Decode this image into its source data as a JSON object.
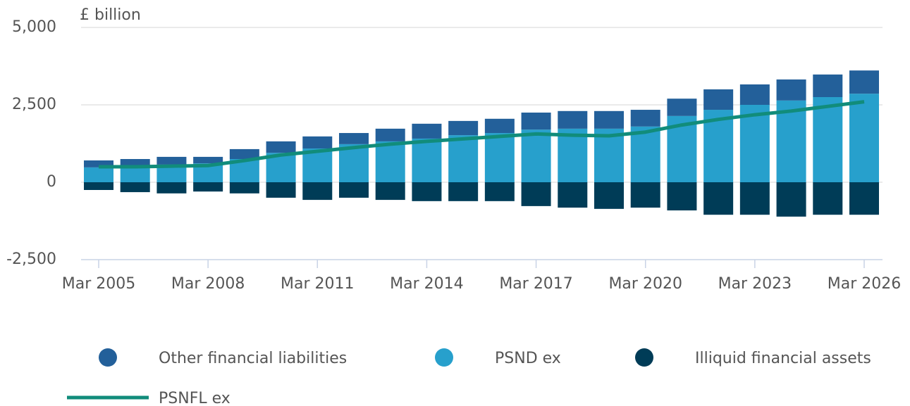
{
  "chart_data": {
    "type": "bar",
    "y_label": "£ billion",
    "categories": [
      "Mar 2005",
      null,
      null,
      "Mar 2008",
      null,
      null,
      "Mar 2011",
      null,
      null,
      "Mar 2014",
      null,
      null,
      "Mar 2017",
      null,
      null,
      "Mar 2020",
      null,
      null,
      "Mar 2023",
      null,
      null,
      "Mar 2026"
    ],
    "series": [
      {
        "name": "Other financial liabilities",
        "color": "#23609a",
        "type": "bar",
        "stack": "pos",
        "values": [
          225,
          230,
          250,
          210,
          320,
          370,
          390,
          360,
          410,
          480,
          460,
          460,
          550,
          570,
          570,
          540,
          560,
          660,
          660,
          680,
          730,
          750
        ]
      },
      {
        "name": "PSND ex",
        "color": "#27a0cc",
        "type": "bar",
        "stack": "pos",
        "values": [
          480,
          520,
          570,
          610,
          750,
          950,
          1090,
          1230,
          1320,
          1410,
          1520,
          1590,
          1700,
          1730,
          1730,
          1800,
          2140,
          2340,
          2500,
          2640,
          2750,
          2860
        ]
      },
      {
        "name": "Illiquid financial assets",
        "color": "#003c57",
        "type": "bar",
        "stack": "neg",
        "values": [
          -250,
          -320,
          -360,
          -300,
          -360,
          -500,
          -570,
          -500,
          -570,
          -610,
          -610,
          -610,
          -770,
          -820,
          -860,
          -820,
          -910,
          -1050,
          -1050,
          -1110,
          -1050,
          -1050
        ]
      },
      {
        "name": "PSNFL ex",
        "color": "#118c7b",
        "type": "line",
        "values": [
          500,
          500,
          520,
          540,
          700,
          880,
          1000,
          1120,
          1230,
          1320,
          1400,
          1480,
          1560,
          1520,
          1500,
          1620,
          1850,
          2030,
          2180,
          2300,
          2450,
          2600
        ]
      }
    ],
    "ylim": [
      -2500,
      5000
    ],
    "yticks": [
      {
        "value": -2500,
        "label": "-2,500"
      },
      0,
      {
        "value": 2500,
        "label": "2,500"
      },
      {
        "value": 5000,
        "label": "5,000"
      }
    ],
    "grid": true
  }
}
